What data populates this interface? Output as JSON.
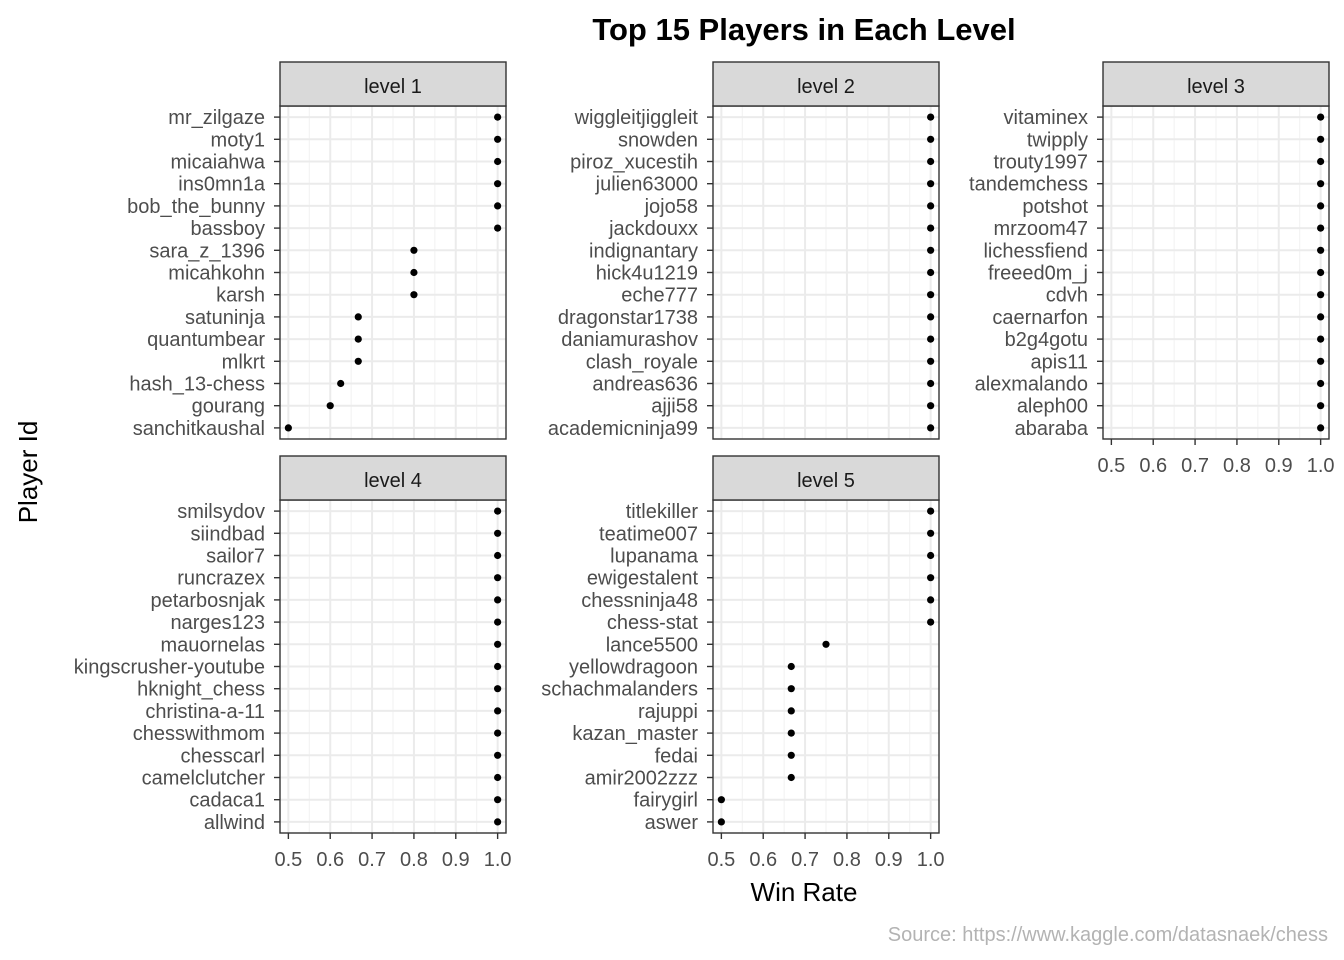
{
  "chart_data": {
    "type": "scatter",
    "title": "Top 15 Players in Each Level",
    "xlabel": "Win Rate",
    "ylabel": "Player Id",
    "caption": "Source: https://www.kaggle.com/datasnaek/chess",
    "xlim": [
      0.48,
      1.02
    ],
    "x_ticks": [
      "0.5",
      "0.6",
      "0.7",
      "0.8",
      "0.9",
      "1.0"
    ],
    "grid": true,
    "facets": [
      {
        "label": "level 1",
        "players": [
          "mr_zilgaze",
          "moty1",
          "micaiahwa",
          "ins0mn1a",
          "bob_the_bunny",
          "bassboy",
          "sara_z_1396",
          "micahkohn",
          "karsh",
          "satuninja",
          "quantumbear",
          "mlkrt",
          "hash_13-chess",
          "gourang",
          "sanchitkaushal"
        ],
        "values": [
          1.0,
          1.0,
          1.0,
          1.0,
          1.0,
          1.0,
          0.8,
          0.8,
          0.8,
          0.667,
          0.667,
          0.667,
          0.625,
          0.6,
          0.5
        ]
      },
      {
        "label": "level 2",
        "players": [
          "wiggleitjiggleit",
          "snowden",
          "piroz_xucestih",
          "julien63000",
          "jojo58",
          "jackdouxx",
          "indignantary",
          "hick4u1219",
          "eche777",
          "dragonstar1738",
          "daniamurashov",
          "clash_royale",
          "andreas636",
          "ajji58",
          "academicninja99"
        ],
        "values": [
          1.0,
          1.0,
          1.0,
          1.0,
          1.0,
          1.0,
          1.0,
          1.0,
          1.0,
          1.0,
          1.0,
          1.0,
          1.0,
          1.0,
          1.0
        ]
      },
      {
        "label": "level 3",
        "players": [
          "vitaminex",
          "twipply",
          "trouty1997",
          "tandemchess",
          "potshot",
          "mrzoom47",
          "lichessfiend",
          "freeed0m_j",
          "cdvh",
          "caernarfon",
          "b2g4gotu",
          "apis11",
          "alexmalando",
          "aleph00",
          "abaraba"
        ],
        "values": [
          1.0,
          1.0,
          1.0,
          1.0,
          1.0,
          1.0,
          1.0,
          1.0,
          1.0,
          1.0,
          1.0,
          1.0,
          1.0,
          1.0,
          1.0
        ]
      },
      {
        "label": "level 4",
        "players": [
          "smilsydov",
          "siindbad",
          "sailor7",
          "runcrazex",
          "petarbosnjak",
          "narges123",
          "mauornelas",
          "kingscrusher-youtube",
          "hknight_chess",
          "christina-a-11",
          "chesswithmom",
          "chesscarl",
          "camelclutcher",
          "cadaca1",
          "allwind"
        ],
        "values": [
          1.0,
          1.0,
          1.0,
          1.0,
          1.0,
          1.0,
          1.0,
          1.0,
          1.0,
          1.0,
          1.0,
          1.0,
          1.0,
          1.0,
          1.0
        ]
      },
      {
        "label": "level 5",
        "players": [
          "titlekiller",
          "teatime007",
          "lupanama",
          "ewigestalent",
          "chessninja48",
          "chess-stat",
          "lance5500",
          "yellowdragoon",
          "schachmalanders",
          "rajuppi",
          "kazan_master",
          "fedai",
          "amir2002zzz",
          "fairygirl",
          "aswer"
        ],
        "values": [
          1.0,
          1.0,
          1.0,
          1.0,
          1.0,
          1.0,
          0.75,
          0.667,
          0.667,
          0.667,
          0.667,
          0.667,
          0.667,
          0.5,
          0.5
        ]
      }
    ]
  }
}
